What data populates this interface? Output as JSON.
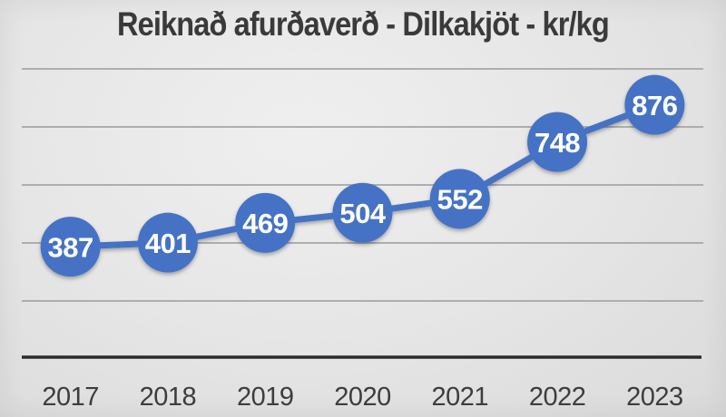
{
  "title": "Reiknað afurðaverð - Dilkakjöt - kr/kg",
  "chart_data": {
    "type": "line",
    "title": "Reiknað afurðaverð - Dilkakjöt - kr/kg",
    "categories": [
      "2017",
      "2018",
      "2019",
      "2020",
      "2021",
      "2022",
      "2023"
    ],
    "values": [
      387,
      401,
      469,
      504,
      552,
      748,
      876
    ],
    "xlabel": "",
    "ylabel": "",
    "ylim": [
      0,
      1050
    ],
    "yticks": [
      200,
      400,
      600,
      800,
      1000
    ],
    "grid": true,
    "legend": false,
    "data_labels": "inside-markers",
    "colors": {
      "series": "#4472c4",
      "marker": "#4472c4",
      "label_text": "#ffffff",
      "gridline": "#a6a6a6",
      "axis_line": "#2b2b2b",
      "tick_text": "#3d3d3d",
      "title_text": "#3a3a3a"
    }
  }
}
